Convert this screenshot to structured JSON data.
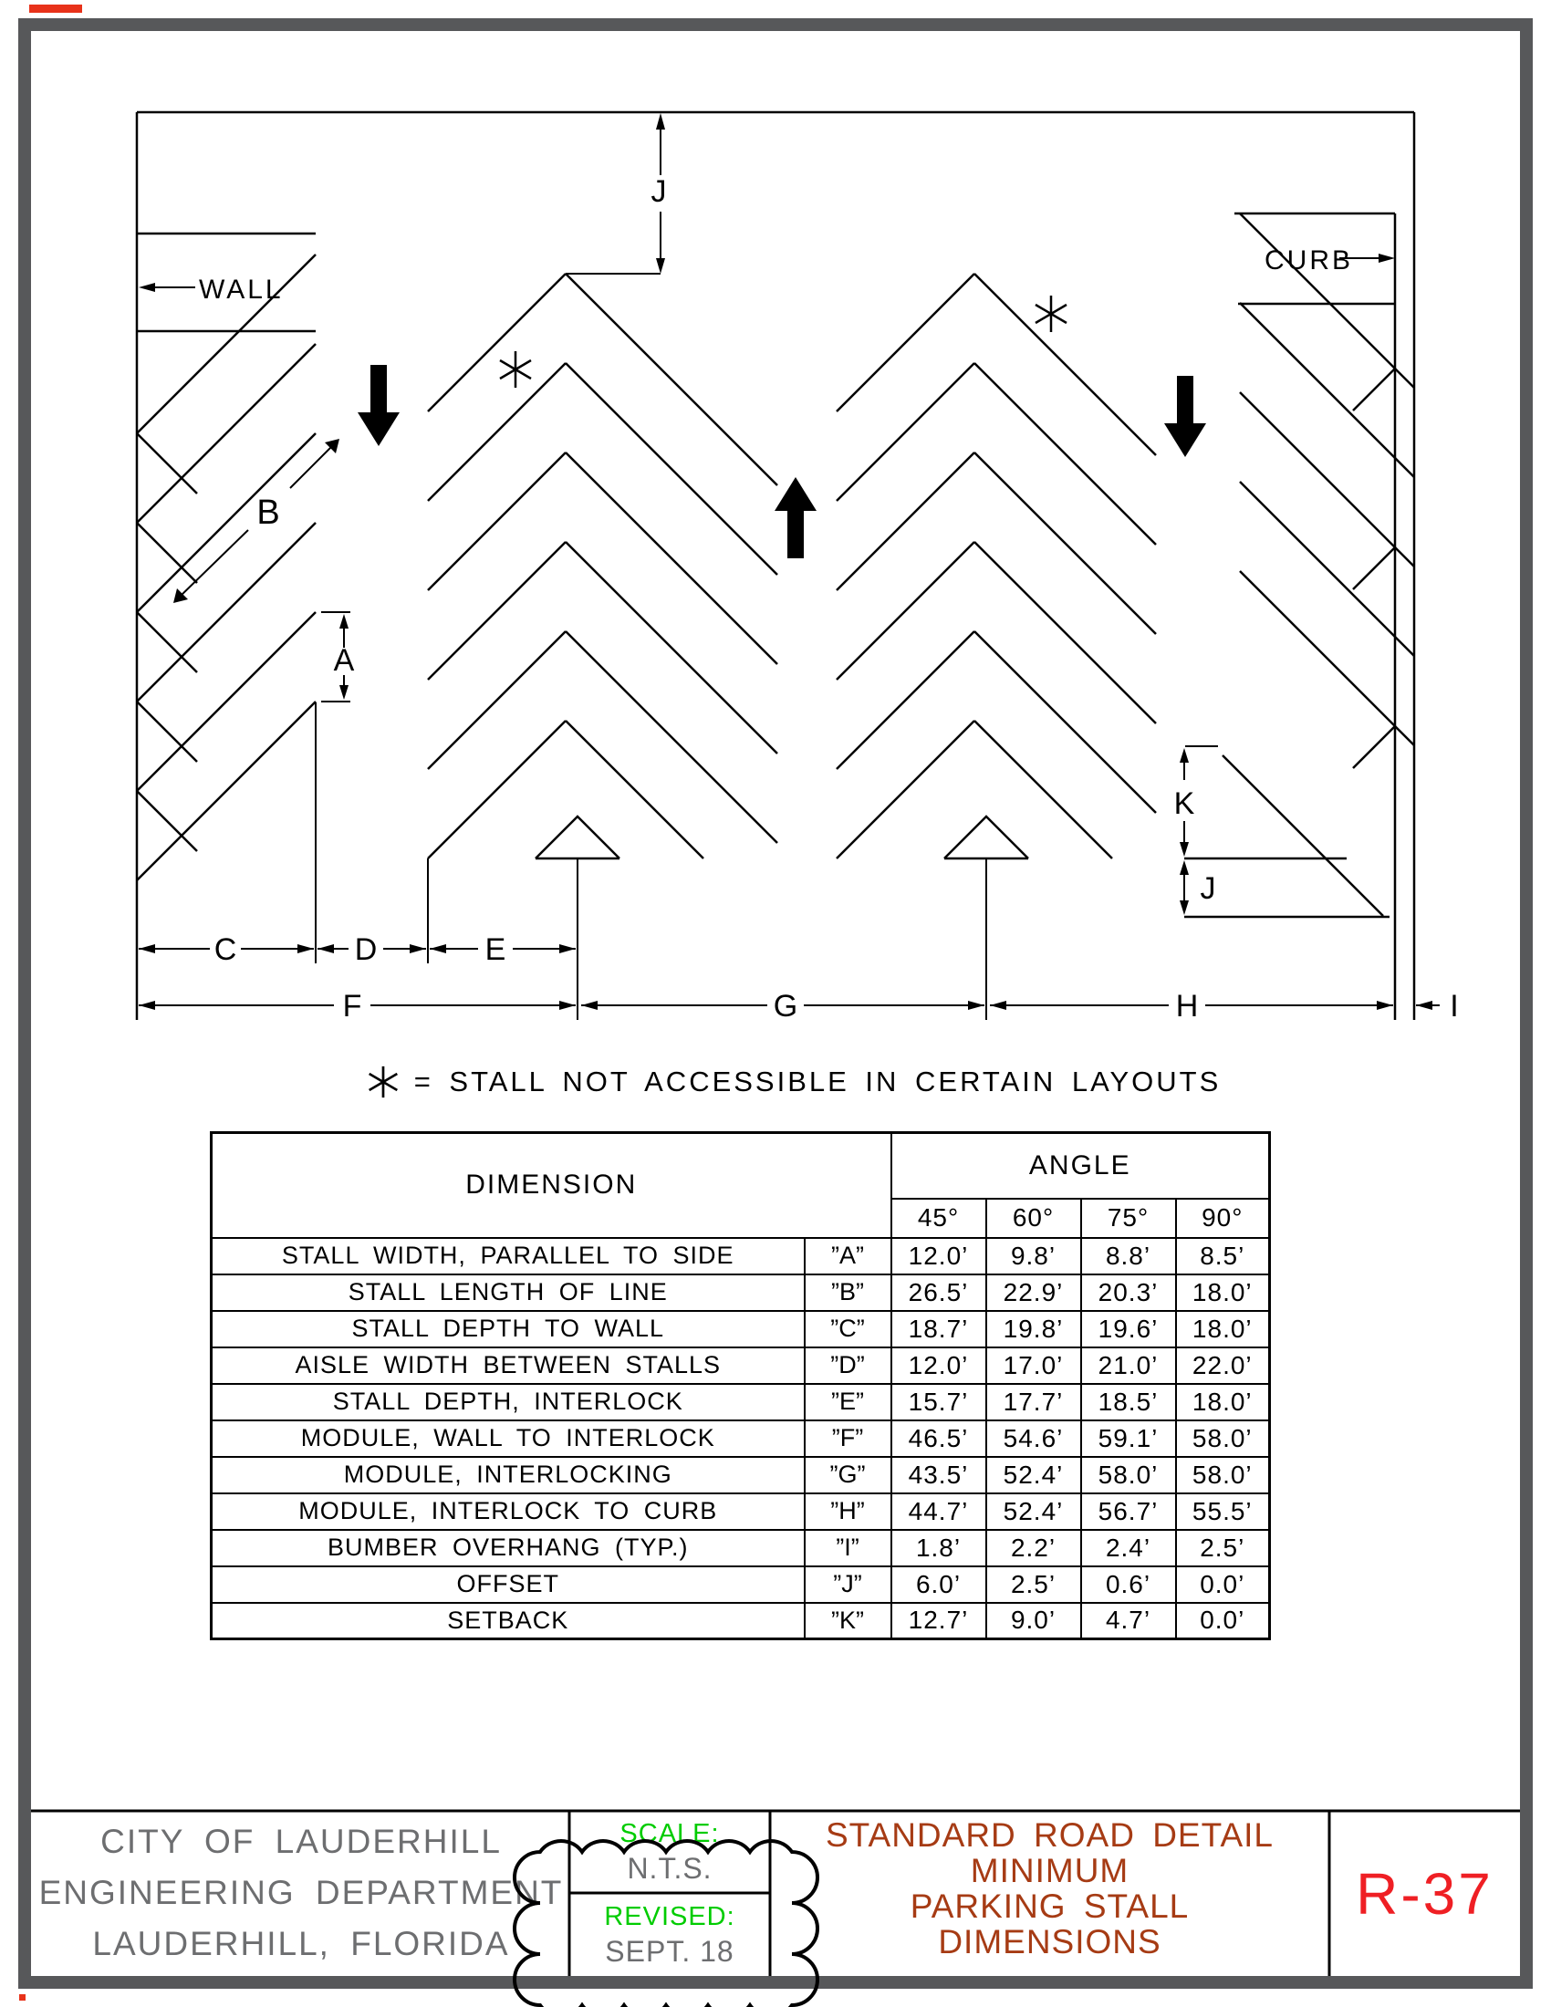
{
  "sheet": {
    "note_symbol": "*",
    "note": "= STALL NOT ACCESSIBLE IN CERTAIN LAYOUTS"
  },
  "diagram": {
    "wall": "WALL",
    "curb": "CURB",
    "dims": {
      "a": "A",
      "b": "B",
      "c": "C",
      "d": "D",
      "e": "E",
      "f": "F",
      "g": "G",
      "h": "H",
      "i": "I",
      "j_top": "J",
      "j_side": "J",
      "k": "K"
    }
  },
  "table": {
    "header": {
      "dimension": "DIMENSION",
      "angle": "ANGLE"
    },
    "angles": [
      "45°",
      "60°",
      "75°",
      "90°"
    ],
    "rows": [
      {
        "label": "STALL WIDTH, PARALLEL TO SIDE",
        "letter": "”A”",
        "values": [
          "12.0’",
          "9.8’",
          "8.8’",
          "8.5’"
        ]
      },
      {
        "label": "STALL LENGTH OF LINE",
        "letter": "”B”",
        "values": [
          "26.5’",
          "22.9’",
          "20.3’",
          "18.0’"
        ]
      },
      {
        "label": "STALL DEPTH TO WALL",
        "letter": "”C”",
        "values": [
          "18.7’",
          "19.8’",
          "19.6’",
          "18.0’"
        ]
      },
      {
        "label": "AISLE WIDTH BETWEEN STALLS",
        "letter": "”D”",
        "values": [
          "12.0’",
          "17.0’",
          "21.0’",
          "22.0’"
        ]
      },
      {
        "label": "STALL DEPTH, INTERLOCK",
        "letter": "”E”",
        "values": [
          "15.7’",
          "17.7’",
          "18.5’",
          "18.0’"
        ]
      },
      {
        "label": "MODULE, WALL TO INTERLOCK",
        "letter": "”F”",
        "values": [
          "46.5’",
          "54.6’",
          "59.1’",
          "58.0’"
        ]
      },
      {
        "label": "MODULE, INTERLOCKING",
        "letter": "”G”",
        "values": [
          "43.5’",
          "52.4’",
          "58.0’",
          "58.0’"
        ]
      },
      {
        "label": "MODULE, INTERLOCK TO CURB",
        "letter": "”H”",
        "values": [
          "44.7’",
          "52.4’",
          "56.7’",
          "55.5’"
        ]
      },
      {
        "label": "BUMBER OVERHANG (TYP.)",
        "letter": "”I”",
        "values": [
          "1.8’",
          "2.2’",
          "2.4’",
          "2.5’"
        ]
      },
      {
        "label": "OFFSET",
        "letter": "”J”",
        "values": [
          "6.0’",
          "2.5’",
          "0.6’",
          "0.0’"
        ]
      },
      {
        "label": "SETBACK",
        "letter": "”K”",
        "values": [
          "12.7’",
          "9.0’",
          "4.7’",
          "0.0’"
        ]
      }
    ]
  },
  "title_block": {
    "agency": [
      "CITY OF LAUDERHILL",
      "ENGINEERING DEPARTMENT",
      "LAUDERHILL, FLORIDA"
    ],
    "scale_label": "SCALE:",
    "scale_value": "N.T.S.",
    "revised_label": "REVISED:",
    "revised_value": "SEPT. 18",
    "title": [
      "STANDARD ROAD DETAIL",
      "MINIMUM",
      "PARKING STALL",
      "DIMENSIONS"
    ],
    "sheet_no": "R-37"
  },
  "colors": {
    "line_black": "#000000",
    "border_gray": "#57585a",
    "text_gray": "#6d6e70",
    "green": "#00cc00",
    "title_red": "#a63b14",
    "sheet_red": "#ef1f24"
  }
}
